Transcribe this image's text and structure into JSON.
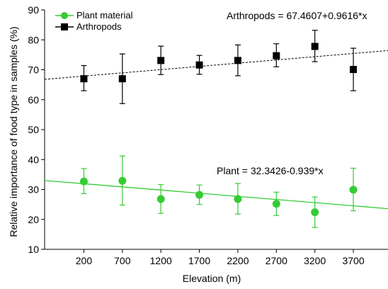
{
  "chart_data": {
    "type": "scatter",
    "xlabel": "Elevation (m)",
    "ylabel": "Relative importance of food type in samples (%)",
    "x_ticks": [
      "200",
      "700",
      "1200",
      "1700",
      "2200",
      "2700",
      "3200",
      "3700"
    ],
    "y_ticks": [
      "10",
      "20",
      "30",
      "40",
      "50",
      "60",
      "70",
      "80",
      "90"
    ],
    "ylim": [
      10,
      90
    ],
    "xlim": [
      -310,
      4150
    ],
    "grid": false,
    "legend_position": "top-left",
    "series": [
      {
        "name": "Plant material",
        "color": "#33cc33",
        "marker": "circle",
        "x": [
          200,
          700,
          1200,
          1700,
          2200,
          2700,
          3200,
          3700
        ],
        "y": [
          32.7,
          32.9,
          26.8,
          28.2,
          26.8,
          25.2,
          22.4,
          29.9
        ],
        "err_high": [
          37.0,
          41.2,
          31.6,
          31.5,
          32.0,
          29.1,
          27.5,
          37.1
        ],
        "err_low": [
          28.6,
          24.8,
          22.0,
          25.0,
          21.8,
          21.3,
          17.3,
          22.9
        ],
        "fit": {
          "label": "Plant = 32.3426-0.939*x",
          "intercept": 32.3426,
          "slope_per_1000m": -2.11,
          "style": "solid"
        }
      },
      {
        "name": "Arthropods",
        "color": "#000000",
        "marker": "square",
        "x": [
          200,
          700,
          1200,
          1700,
          2200,
          2700,
          3200,
          3700
        ],
        "y": [
          67.0,
          67.0,
          73.1,
          71.6,
          73.1,
          74.7,
          77.8,
          70.1
        ],
        "err_high": [
          71.4,
          75.3,
          77.9,
          74.8,
          78.3,
          78.7,
          83.2,
          77.2
        ],
        "err_low": [
          63.0,
          58.7,
          68.4,
          68.5,
          68.0,
          71.0,
          72.7,
          63.0
        ],
        "fit": {
          "label": "Arthropods = 67.4607+0.9616*x",
          "intercept": 67.4607,
          "slope_per_1000m": 2.16,
          "style": "dashed"
        }
      }
    ]
  }
}
